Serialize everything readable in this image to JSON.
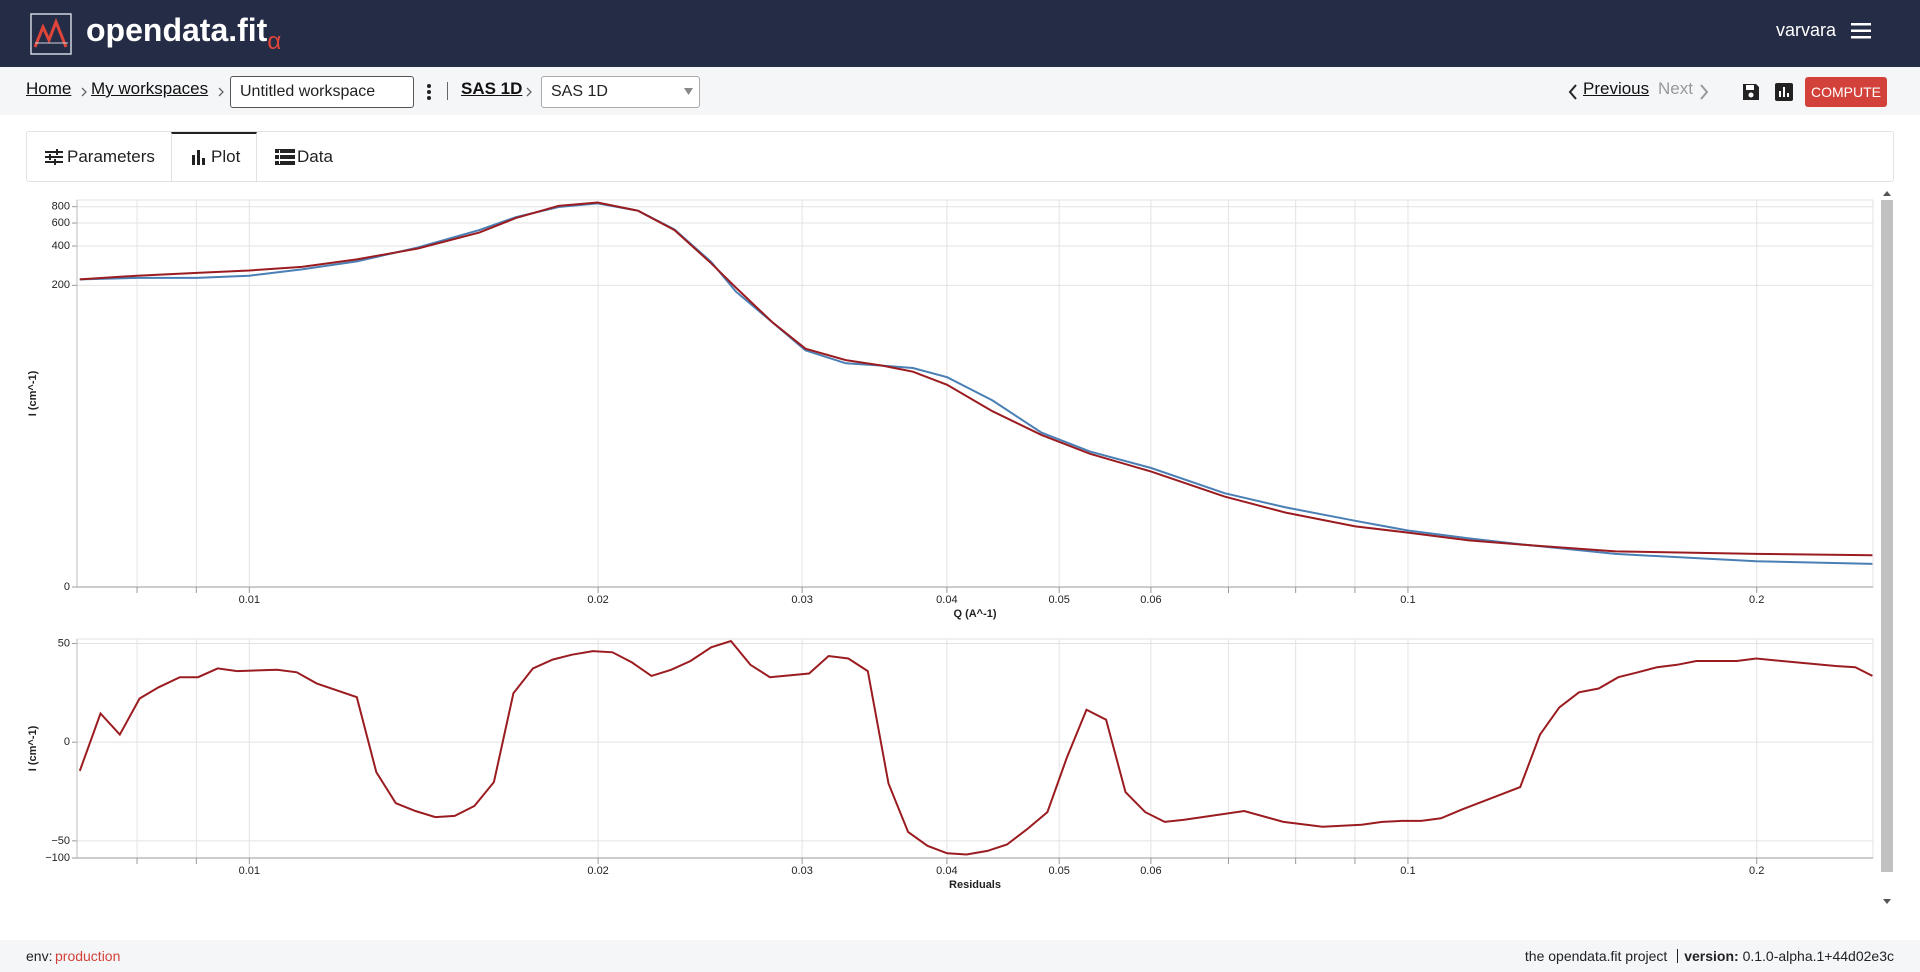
{
  "header": {
    "brand": "opendata.fit",
    "brand_suffix": "α",
    "user": "varvara"
  },
  "breadcrumb": {
    "home": "Home",
    "workspaces": "My workspaces",
    "workspace_name": "Untitled workspace",
    "model": "SAS 1D",
    "model_select": "SAS 1D"
  },
  "nav": {
    "previous": "Previous",
    "next": "Next",
    "compute": "COMPUTE"
  },
  "tabs": [
    "Parameters",
    "Plot",
    "Data"
  ],
  "chart_data": [
    {
      "type": "line",
      "xlabel": "Q (A^-1)",
      "ylabel": "I (cm^-1)",
      "xscale": "log",
      "yscale": "symlog",
      "grid": true,
      "xlim": [
        0.0071,
        0.252
      ],
      "ylim": [
        0,
        900
      ],
      "xticks": [
        0.01,
        0.02,
        0.03,
        0.04,
        0.05,
        0.06,
        0.1,
        0.2
      ],
      "xminor": [
        0.008,
        0.009,
        0.07,
        0.08,
        0.09
      ],
      "yticks": [
        0,
        200,
        400,
        600,
        800
      ],
      "x": [
        0.00714,
        0.008,
        0.00901,
        0.01,
        0.0111,
        0.01238,
        0.01398,
        0.01579,
        0.01698,
        0.01849,
        0.01998,
        0.02165,
        0.02328,
        0.02504,
        0.0263,
        0.02828,
        0.0302,
        0.03272,
        0.03518,
        0.03739,
        0.04002,
        0.04379,
        0.04827,
        0.05317,
        0.06004,
        0.06946,
        0.07843,
        0.09007,
        0.1,
        0.1129,
        0.1275,
        0.1511,
        0.1998,
        0.2517
      ],
      "series": [
        {
          "color": "#4a7fb5",
          "values": [
            222,
            228,
            228,
            237,
            265,
            305,
            390,
            530,
            665,
            795,
            848,
            745,
            535,
            302,
            179,
            104,
            63,
            50,
            48,
            46,
            39,
            25.6,
            14.1,
            9.8,
            7.1,
            4.2,
            3.05,
            2.2,
            1.7,
            1.35,
            1.08,
            0.79,
            0.57,
            0.5
          ]
        },
        {
          "color": "#9b1c20",
          "values": [
            222,
            237,
            249,
            260,
            277,
            316,
            383,
            507,
            655,
            811,
            862,
            745,
            530,
            295,
            192,
            104,
            65,
            53,
            48,
            43,
            34,
            21,
            13.5,
            9.4,
            6.6,
            3.9,
            2.7,
            1.9,
            1.6,
            1.27,
            1.08,
            0.87,
            0.79,
            0.75
          ]
        }
      ]
    },
    {
      "type": "line",
      "xlabel": "Residuals",
      "ylabel": "I (cm^-1)",
      "xscale": "log",
      "yscale": "symlog",
      "grid": true,
      "xlim": [
        0.0071,
        0.252
      ],
      "ylim": [
        -100,
        60
      ],
      "xticks": [
        0.01,
        0.02,
        0.03,
        0.04,
        0.05,
        0.06,
        0.1,
        0.2
      ],
      "xminor": [
        0.008,
        0.009,
        0.07,
        0.08,
        0.09
      ],
      "yticks": [
        50,
        0,
        {
          "value": -50,
          "label": "−50"
        },
        {
          "value": -100,
          "label": "−100"
        }
      ],
      "x": [
        0.00714,
        0.00744,
        0.00773,
        0.00804,
        0.00835,
        0.00871,
        0.00903,
        0.00939,
        0.00976,
        0.01057,
        0.01099,
        0.01143,
        0.01238,
        0.01287,
        0.01338,
        0.01391,
        0.01447,
        0.01504,
        0.01564,
        0.01626,
        0.0169,
        0.01757,
        0.01827,
        0.01899,
        0.01979,
        0.02058,
        0.02139,
        0.02224,
        0.02312,
        0.02403,
        0.02504,
        0.02604,
        0.02707,
        0.02814,
        0.03042,
        0.03162,
        0.03288,
        0.03418,
        0.03562,
        0.03703,
        0.03849,
        0.04002,
        0.0416,
        0.04335,
        0.04508,
        0.04687,
        0.04884,
        0.05078,
        0.05279,
        0.05489,
        0.05705,
        0.05932,
        0.06167,
        0.06412,
        0.07223,
        0.07807,
        0.08439,
        0.09118,
        0.09502,
        0.09879,
        0.1027,
        0.1068,
        0.1113,
        0.1157,
        0.125,
        0.13,
        0.1351,
        0.1405,
        0.1461,
        0.1519,
        0.1579,
        0.1641,
        0.1707,
        0.1774,
        0.1922,
        0.1998,
        0.2165,
        0.234,
        0.2433,
        0.2517
      ],
      "series": [
        {
          "color": "#9b1c20",
          "values": [
            -2.14,
            2.14,
            0.35,
            4.7,
            7.9,
            12.3,
            12.3,
            17.9,
            16,
            16.9,
            15.2,
            9.4,
            5.0,
            -2.3,
            -10.4,
            -14.5,
            -18.8,
            -17.9,
            -11.7,
            -3.9,
            6.0,
            17.9,
            25.8,
            31.6,
            36.7,
            34.9,
            23,
            13,
            16.9,
            24.4,
            42.9,
            55.3,
            20.8,
            12.3,
            14.4,
            30,
            27,
            16,
            -4.2,
            -34.9,
            -61,
            -82.8,
            -87,
            -75,
            -58,
            -31.6,
            -15.2,
            -0.82,
            2.65,
            1.45,
            -6.3,
            -15.2,
            -23,
            -21,
            -14.5,
            -23,
            -28,
            -25.8,
            -23,
            -22,
            -22,
            -19.8,
            -13.7,
            -9.9,
            -5.0,
            0.35,
            3.0,
            6.3,
            7.5,
            12.3,
            15.2,
            18.8,
            20.8,
            24.4,
            24.4,
            27,
            23,
            19.8,
            18.8,
            13
          ]
        }
      ]
    }
  ],
  "footer": {
    "env_label": "env:",
    "env": "production",
    "project": "the opendata.fit project",
    "version_label": "version:",
    "version": "0.1.0-alpha.1+44d02e3c"
  }
}
